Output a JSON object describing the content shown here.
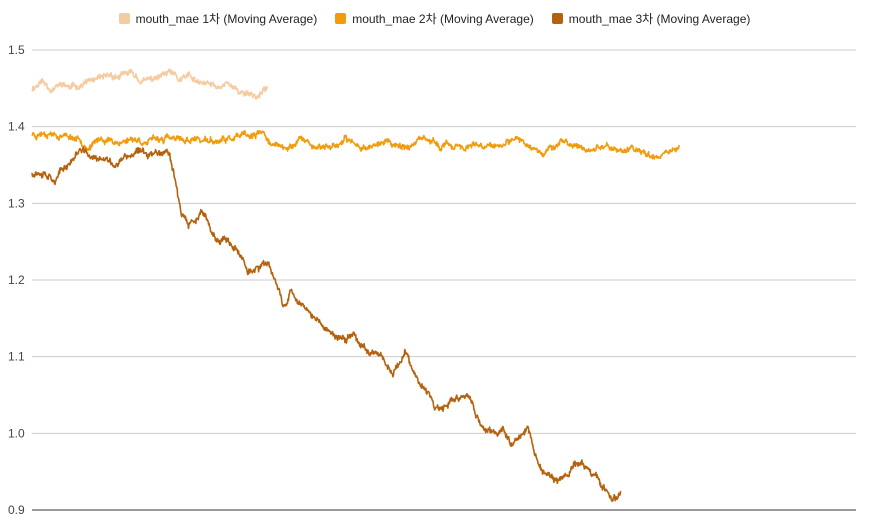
{
  "chart_data": {
    "type": "line",
    "title": "",
    "xlabel": "",
    "ylabel": "",
    "ylim": [
      0.9,
      1.5
    ],
    "y_ticks": [
      0.9,
      1.0,
      1.1,
      1.2,
      1.3,
      1.4,
      1.5
    ],
    "grid": true,
    "legend_position": "top",
    "x_ticks_labeled": false,
    "series": [
      {
        "name": "mouth_mae 1차 (Moving Average)",
        "color": "#f5cba0",
        "anchors": [
          [
            0,
            1.45
          ],
          [
            5,
            1.46
          ],
          [
            10,
            1.45
          ],
          [
            15,
            1.455
          ],
          [
            20,
            1.45
          ],
          [
            25,
            1.455
          ],
          [
            30,
            1.46
          ],
          [
            35,
            1.46
          ],
          [
            40,
            1.465
          ],
          [
            45,
            1.465
          ],
          [
            50,
            1.47
          ],
          [
            55,
            1.46
          ],
          [
            60,
            1.46
          ],
          [
            65,
            1.465
          ],
          [
            70,
            1.47
          ],
          [
            75,
            1.46
          ],
          [
            80,
            1.465
          ],
          [
            85,
            1.455
          ],
          [
            90,
            1.455
          ],
          [
            95,
            1.45
          ],
          [
            100,
            1.46
          ],
          [
            105,
            1.445
          ],
          [
            110,
            1.445
          ],
          [
            115,
            1.44
          ],
          [
            120,
            1.45
          ]
        ],
        "noise": 0.006,
        "wobble": 0.003,
        "seed": 11
      },
      {
        "name": "mouth_mae 2차 (Moving Average)",
        "color": "#f29b0c",
        "anchors": [
          [
            0,
            1.39
          ],
          [
            8,
            1.395
          ],
          [
            16,
            1.39
          ],
          [
            24,
            1.385
          ],
          [
            30,
            1.375
          ],
          [
            36,
            1.385
          ],
          [
            44,
            1.38
          ],
          [
            52,
            1.385
          ],
          [
            60,
            1.38
          ],
          [
            68,
            1.385
          ],
          [
            76,
            1.38
          ],
          [
            84,
            1.385
          ],
          [
            90,
            1.38
          ],
          [
            96,
            1.38
          ],
          [
            104,
            1.385
          ],
          [
            112,
            1.385
          ],
          [
            118,
            1.39
          ],
          [
            124,
            1.375
          ],
          [
            130,
            1.37
          ],
          [
            136,
            1.385
          ],
          [
            144,
            1.375
          ],
          [
            152,
            1.375
          ],
          [
            160,
            1.38
          ],
          [
            170,
            1.375
          ],
          [
            180,
            1.38
          ],
          [
            190,
            1.375
          ],
          [
            200,
            1.38
          ],
          [
            210,
            1.375
          ],
          [
            220,
            1.375
          ],
          [
            230,
            1.37
          ],
          [
            240,
            1.375
          ],
          [
            250,
            1.38
          ],
          [
            260,
            1.37
          ],
          [
            270,
            1.38
          ],
          [
            280,
            1.37
          ],
          [
            290,
            1.375
          ],
          [
            300,
            1.37
          ],
          [
            310,
            1.368
          ],
          [
            320,
            1.365
          ],
          [
            330,
            1.372
          ]
        ],
        "noise": 0.005,
        "wobble": 0.004,
        "seed": 23
      },
      {
        "name": "mouth_mae 3차 (Moving Average)",
        "color": "#b5620f",
        "anchors": [
          [
            0,
            1.34
          ],
          [
            6,
            1.345
          ],
          [
            12,
            1.335
          ],
          [
            18,
            1.35
          ],
          [
            24,
            1.37
          ],
          [
            30,
            1.36
          ],
          [
            36,
            1.355
          ],
          [
            42,
            1.35
          ],
          [
            48,
            1.36
          ],
          [
            54,
            1.365
          ],
          [
            60,
            1.365
          ],
          [
            66,
            1.37
          ],
          [
            70,
            1.37
          ],
          [
            74,
            1.32
          ],
          [
            76,
            1.29
          ],
          [
            80,
            1.27
          ],
          [
            84,
            1.28
          ],
          [
            86,
            1.29
          ],
          [
            90,
            1.27
          ],
          [
            94,
            1.25
          ],
          [
            98,
            1.255
          ],
          [
            102,
            1.24
          ],
          [
            106,
            1.23
          ],
          [
            110,
            1.215
          ],
          [
            114,
            1.215
          ],
          [
            118,
            1.22
          ],
          [
            122,
            1.21
          ],
          [
            124,
            1.195
          ],
          [
            126,
            1.185
          ],
          [
            128,
            1.17
          ],
          [
            130,
            1.17
          ],
          [
            132,
            1.19
          ],
          [
            136,
            1.175
          ],
          [
            140,
            1.16
          ],
          [
            144,
            1.15
          ],
          [
            150,
            1.135
          ],
          [
            156,
            1.125
          ],
          [
            160,
            1.12
          ],
          [
            164,
            1.13
          ],
          [
            168,
            1.115
          ],
          [
            172,
            1.105
          ],
          [
            176,
            1.11
          ],
          [
            180,
            1.095
          ],
          [
            184,
            1.08
          ],
          [
            188,
            1.095
          ],
          [
            190,
            1.11
          ],
          [
            194,
            1.08
          ],
          [
            198,
            1.06
          ],
          [
            202,
            1.05
          ],
          [
            206,
            1.03
          ],
          [
            210,
            1.03
          ],
          [
            214,
            1.04
          ],
          [
            218,
            1.045
          ],
          [
            222,
            1.05
          ],
          [
            224,
            1.04
          ],
          [
            228,
            1.015
          ],
          [
            232,
            1.0
          ],
          [
            236,
            1.0
          ],
          [
            240,
            1.005
          ],
          [
            244,
            0.99
          ],
          [
            248,
            0.995
          ],
          [
            252,
            1.01
          ],
          [
            254,
            1.0
          ],
          [
            256,
            0.975
          ],
          [
            260,
            0.95
          ],
          [
            264,
            0.945
          ],
          [
            268,
            0.935
          ],
          [
            272,
            0.945
          ],
          [
            276,
            0.955
          ],
          [
            280,
            0.965
          ],
          [
            284,
            0.95
          ],
          [
            288,
            0.945
          ],
          [
            292,
            0.925
          ],
          [
            296,
            0.915
          ],
          [
            298,
            0.915
          ],
          [
            300,
            0.925
          ]
        ],
        "noise": 0.006,
        "wobble": 0.004,
        "seed": 37
      }
    ]
  }
}
